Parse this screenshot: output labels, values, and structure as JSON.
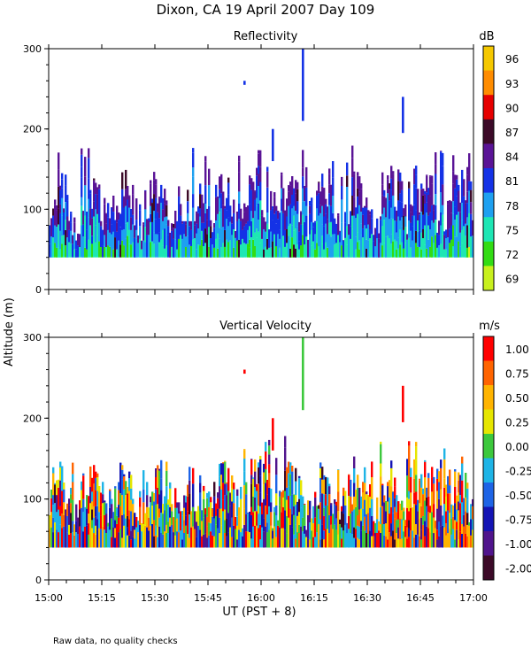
{
  "figure": {
    "title": "Dixon, CA 19 April 2007  Day 109",
    "footer_note": "Raw data, no quality checks",
    "y_axis_label": "Altitude (m)",
    "x_axis_label": "UT  (PST + 8)"
  },
  "chart_data": [
    {
      "type": "heatmap",
      "name": "reflectivity",
      "title": "Reflectivity",
      "units": "dB",
      "ylim": [
        0,
        300
      ],
      "yticks": [
        "0",
        "100",
        "200",
        "300"
      ],
      "xticks": [
        "15:00",
        "15:15",
        "15:30",
        "15:45",
        "16:00",
        "16:15",
        "16:30",
        "16:45",
        "17:00"
      ],
      "colorbar": {
        "labels": [
          "96",
          "93",
          "90",
          "87",
          "84",
          "81",
          "78",
          "75",
          "72",
          "69"
        ],
        "colors": [
          "#f5c800",
          "#ff8c00",
          "#e60000",
          "#3c0a28",
          "#5a1496",
          "#1432e6",
          "#1ea0f0",
          "#1ee6b4",
          "#32dc14",
          "#c8f01e"
        ]
      }
    },
    {
      "type": "heatmap",
      "name": "vertical-velocity",
      "title": "Vertical Velocity",
      "units": "m/s",
      "ylim": [
        0,
        300
      ],
      "yticks": [
        "0",
        "100",
        "200",
        "300"
      ],
      "xticks": [
        "15:00",
        "15:15",
        "15:30",
        "15:45",
        "16:00",
        "16:15",
        "16:30",
        "16:45",
        "17:00"
      ],
      "colorbar": {
        "labels": [
          "1.00",
          "0.75",
          "0.50",
          "0.25",
          "0.00",
          "-0.25",
          "-0.50",
          "-0.75",
          "-1.00",
          "-2.00"
        ],
        "colors": [
          "#ff0000",
          "#ff6400",
          "#ffb400",
          "#e6e600",
          "#3cc83c",
          "#1eb4e6",
          "#1e64e6",
          "#1414b4",
          "#50148c",
          "#3c0a28"
        ]
      }
    }
  ]
}
